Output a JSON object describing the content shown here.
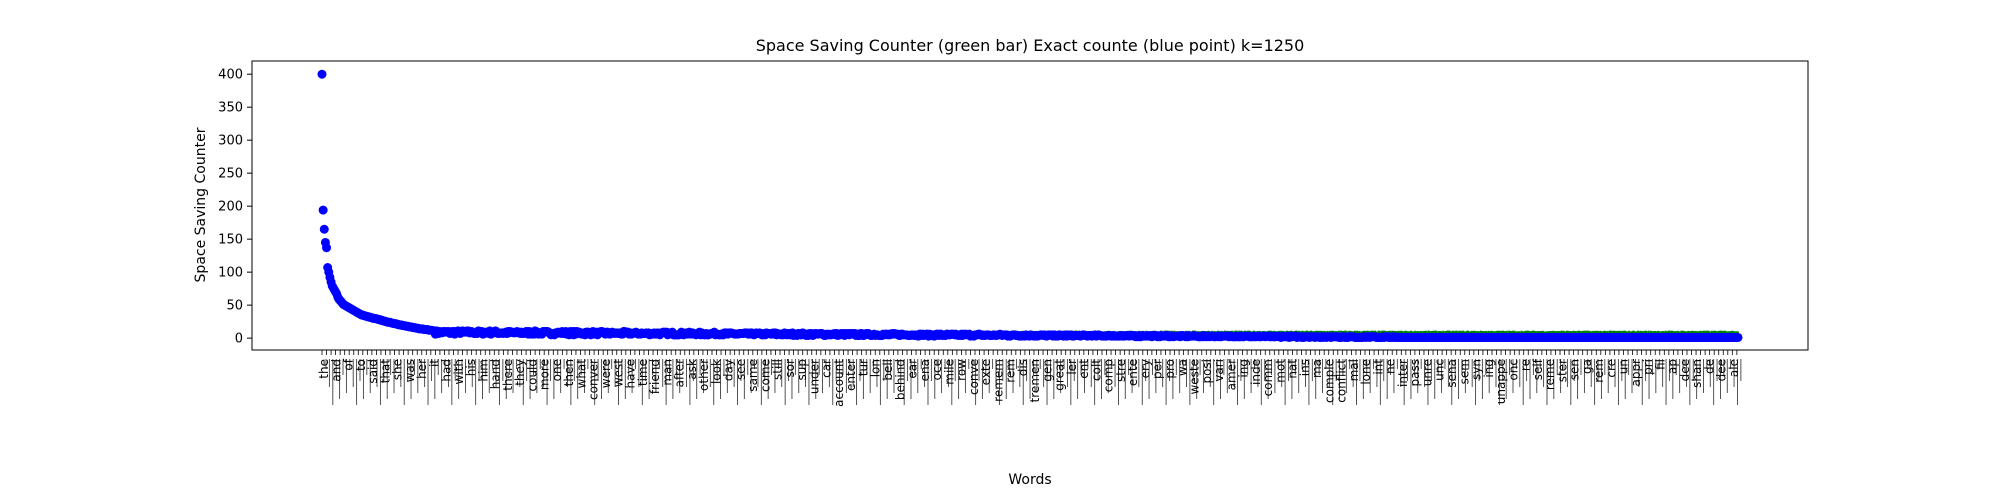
{
  "chart_data": {
    "type": "scatter",
    "title": "Space Saving Counter (green bar)  Exact counte (blue point) k=1250",
    "xlabel": "Words",
    "ylabel": "Space Saving Counter",
    "ylim": [
      -18,
      420
    ],
    "yticks": [
      0,
      50,
      100,
      150,
      200,
      250,
      300,
      350,
      400
    ],
    "word_count": 1250,
    "grid": false,
    "legend": "none",
    "colors": {
      "points": "#0000ff",
      "bars": "#008000"
    },
    "visible_word_labels": [
      "the",
      "and",
      "of",
      "to",
      "said",
      "that",
      "she",
      "was",
      "her",
      "it",
      "had",
      "with",
      "his",
      "him",
      "hand",
      "there",
      "they",
      "could",
      "more",
      "one",
      "then",
      "what",
      "conver",
      "were",
      "west",
      "have",
      "time",
      "friend",
      "man",
      "after",
      "ask",
      "other",
      "look",
      "day",
      "see",
      "same",
      "come",
      "still",
      "sor",
      "sup",
      "under",
      "car",
      "account",
      "enter",
      "tur",
      "lon",
      "bell",
      "behind",
      "ear",
      "ena",
      "oce",
      "mile",
      "row",
      "conve",
      "exte",
      "remem",
      "rem",
      "dis",
      "tremen",
      "gen",
      "great",
      "ler",
      "ent",
      "colt",
      "comp",
      "stre",
      "ente",
      "ery",
      "per",
      "pro",
      "wa",
      "weste",
      "posi",
      "vari",
      "amer",
      "ing",
      "inde",
      "comm",
      "mot",
      "nat",
      "ins",
      "ma",
      "comple",
      "conflict",
      "mal",
      "lone",
      "int",
      "ne",
      "inter",
      "pass",
      "unre",
      "unc",
      "sena",
      "sem",
      "syn",
      "ing",
      "unappe",
      "onc",
      "re",
      "self",
      "reme",
      "ster",
      "sen",
      "ga",
      "rem",
      "cre",
      "un",
      "appr",
      "pri",
      "fil",
      "ap",
      "dee",
      "shan",
      "de",
      "dee",
      "ale"
    ],
    "exact_counts": [
      400,
      194,
      165,
      145,
      137,
      107,
      100,
      92,
      85,
      79,
      76,
      73,
      70,
      67,
      62,
      59,
      57,
      55,
      53,
      51,
      50,
      49,
      48,
      47,
      46,
      45,
      44,
      43,
      42,
      41,
      40,
      39,
      38,
      37,
      36,
      35,
      35,
      34,
      34,
      33,
      33,
      32,
      32,
      31,
      31,
      30,
      30,
      30,
      29,
      29,
      28,
      28,
      27,
      27,
      26,
      26,
      25,
      25,
      24,
      24,
      24,
      23,
      23,
      22,
      22,
      22,
      21,
      21,
      20,
      20,
      20,
      19,
      19,
      19,
      18,
      18,
      18,
      17,
      17,
      17,
      16,
      16,
      16,
      15,
      15,
      15,
      14,
      14,
      14,
      14,
      13,
      13,
      13,
      13,
      12,
      12,
      12,
      12,
      11,
      11
    ]
  }
}
